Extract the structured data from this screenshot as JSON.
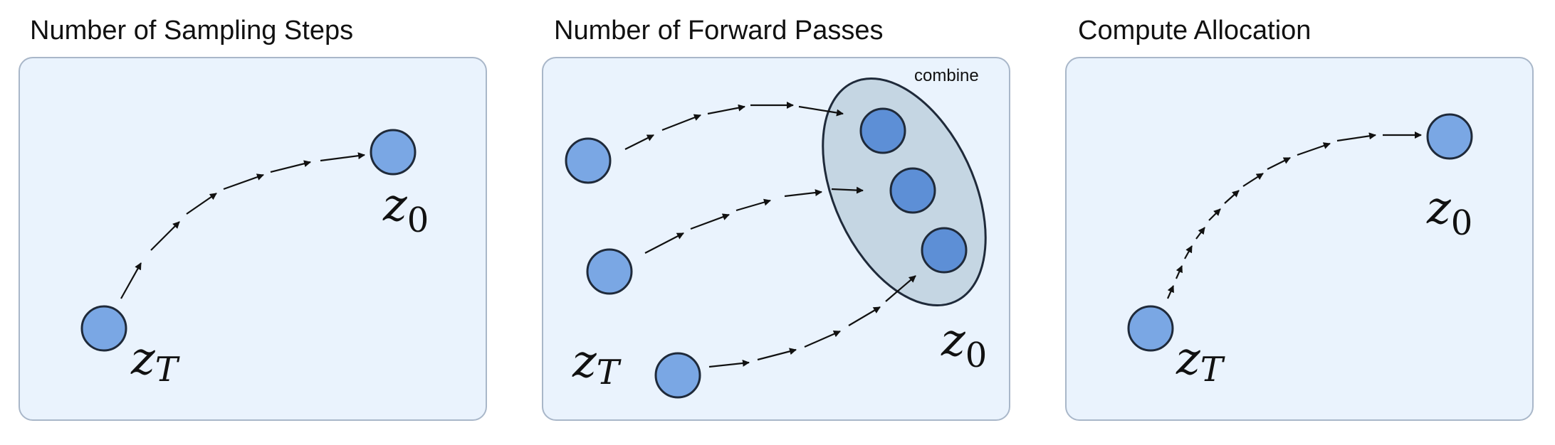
{
  "panels": [
    {
      "title": "Number of Sampling Steps",
      "start_label": "z",
      "start_subscript": "T",
      "end_label": "z",
      "end_subscript": "0"
    },
    {
      "title": "Number of Forward Passes",
      "start_label": "z",
      "start_subscript": "T",
      "end_label": "z",
      "end_subscript": "0",
      "combine_label": "combine"
    },
    {
      "title": "Compute Allocation",
      "start_label": "z",
      "start_subscript": "T",
      "end_label": "z",
      "end_subscript": "0"
    }
  ],
  "colors": {
    "panel_fill": "#eaf3fd",
    "panel_border": "#a9b7c9",
    "node_fill": "#7aa7e4",
    "node_fill_dark": "#5d8fd6",
    "node_stroke": "#1f2a3a",
    "ellipse_fill": "#c5d6e3",
    "arrow": "#111111"
  }
}
